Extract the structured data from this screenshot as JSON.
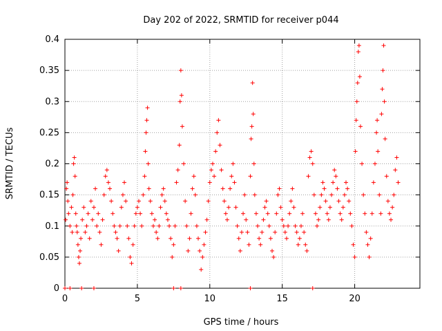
{
  "chart_data": {
    "type": "scatter",
    "title": "Day 202 of 2022, SRMTID for receiver p044",
    "xlabel": "GPS time / hours",
    "ylabel": "SRMTID / TECUs",
    "xlim": [
      0,
      24.5
    ],
    "ylim": [
      0,
      0.4
    ],
    "xticks": [
      0,
      5,
      10,
      15,
      20
    ],
    "xtick_labels": [
      "0",
      "5",
      "10",
      "15",
      "20"
    ],
    "yticks": [
      0,
      0.05,
      0.1,
      0.15,
      0.2,
      0.25,
      0.3,
      0.35,
      0.4
    ],
    "ytick_labels": [
      "0",
      "0.05",
      "0.1",
      "0.15",
      "0.2",
      "0.25",
      "0.3",
      "0.35",
      "0.4"
    ],
    "grid": true,
    "marker": "+",
    "color": "#ff0000",
    "series": [
      {
        "name": "SRMTID",
        "points": [
          [
            0.05,
            0.11
          ],
          [
            0.1,
            0.16
          ],
          [
            0.15,
            0.17
          ],
          [
            0.2,
            0.14
          ],
          [
            0.25,
            0.12
          ],
          [
            0.35,
            0.1
          ],
          [
            0.45,
            0.13
          ],
          [
            0.5,
            0.09
          ],
          [
            0.55,
            0.15
          ],
          [
            0.6,
            0.2
          ],
          [
            0.65,
            0.21
          ],
          [
            0.7,
            0.18
          ],
          [
            0.75,
            0.12
          ],
          [
            0.8,
            0.1
          ],
          [
            0.85,
            0.09
          ],
          [
            0.9,
            0.07
          ],
          [
            0.95,
            0.05
          ],
          [
            1.0,
            0.04
          ],
          [
            1.05,
            0.06
          ],
          [
            1.1,
            0.08
          ],
          [
            1.2,
            0.11
          ],
          [
            1.3,
            0.13
          ],
          [
            1.4,
            0.09
          ],
          [
            1.5,
            0.1
          ],
          [
            1.6,
            0.12
          ],
          [
            1.7,
            0.08
          ],
          [
            1.8,
            0.14
          ],
          [
            1.9,
            0.11
          ],
          [
            2.0,
            0.13
          ],
          [
            2.1,
            0.16
          ],
          [
            2.2,
            0.1
          ],
          [
            2.3,
            0.12
          ],
          [
            2.4,
            0.09
          ],
          [
            2.5,
            0.07
          ],
          [
            2.6,
            0.11
          ],
          [
            2.7,
            0.15
          ],
          [
            2.8,
            0.18
          ],
          [
            2.9,
            0.19
          ],
          [
            3.0,
            0.17
          ],
          [
            3.1,
            0.16
          ],
          [
            3.2,
            0.14
          ],
          [
            3.3,
            0.12
          ],
          [
            3.4,
            0.1
          ],
          [
            3.5,
            0.09
          ],
          [
            3.6,
            0.08
          ],
          [
            3.7,
            0.06
          ],
          [
            3.8,
            0.1
          ],
          [
            3.9,
            0.13
          ],
          [
            4.0,
            0.15
          ],
          [
            4.1,
            0.17
          ],
          [
            4.2,
            0.14
          ],
          [
            4.3,
            0.1
          ],
          [
            4.4,
            0.08
          ],
          [
            4.5,
            0.05
          ],
          [
            4.6,
            0.04
          ],
          [
            4.7,
            0.07
          ],
          [
            4.8,
            0.1
          ],
          [
            4.9,
            0.12
          ],
          [
            5.0,
            0.13
          ],
          [
            5.1,
            0.14
          ],
          [
            5.2,
            0.12
          ],
          [
            5.3,
            0.1
          ],
          [
            5.4,
            0.15
          ],
          [
            5.5,
            0.18
          ],
          [
            5.55,
            0.22
          ],
          [
            5.6,
            0.25
          ],
          [
            5.65,
            0.27
          ],
          [
            5.7,
            0.29
          ],
          [
            5.75,
            0.2
          ],
          [
            5.8,
            0.16
          ],
          [
            5.9,
            0.14
          ],
          [
            6.0,
            0.12
          ],
          [
            6.1,
            0.1
          ],
          [
            6.2,
            0.11
          ],
          [
            6.3,
            0.09
          ],
          [
            6.4,
            0.08
          ],
          [
            6.5,
            0.1
          ],
          [
            6.6,
            0.13
          ],
          [
            6.7,
            0.15
          ],
          [
            6.8,
            0.16
          ],
          [
            6.9,
            0.14
          ],
          [
            7.0,
            0.12
          ],
          [
            7.1,
            0.11
          ],
          [
            7.2,
            0.1
          ],
          [
            7.3,
            0.08
          ],
          [
            7.4,
            0.05
          ],
          [
            7.5,
            0.07
          ],
          [
            7.6,
            0.1
          ],
          [
            7.7,
            0.17
          ],
          [
            7.8,
            0.19
          ],
          [
            7.9,
            0.23
          ],
          [
            7.95,
            0.3
          ],
          [
            8.0,
            0.35
          ],
          [
            8.05,
            0.31
          ],
          [
            8.1,
            0.26
          ],
          [
            8.2,
            0.2
          ],
          [
            8.3,
            0.14
          ],
          [
            8.4,
            0.1
          ],
          [
            8.5,
            0.06
          ],
          [
            8.6,
            0.08
          ],
          [
            8.7,
            0.12
          ],
          [
            8.8,
            0.16
          ],
          [
            8.9,
            0.18
          ],
          [
            9.0,
            0.15
          ],
          [
            9.1,
            0.1
          ],
          [
            9.2,
            0.08
          ],
          [
            9.3,
            0.06
          ],
          [
            9.4,
            0.03
          ],
          [
            9.5,
            0.05
          ],
          [
            9.6,
            0.07
          ],
          [
            9.7,
            0.09
          ],
          [
            9.8,
            0.11
          ],
          [
            9.9,
            0.14
          ],
          [
            10.0,
            0.17
          ],
          [
            10.1,
            0.19
          ],
          [
            10.2,
            0.2
          ],
          [
            10.3,
            0.18
          ],
          [
            10.4,
            0.22
          ],
          [
            10.5,
            0.25
          ],
          [
            10.6,
            0.27
          ],
          [
            10.7,
            0.23
          ],
          [
            10.8,
            0.19
          ],
          [
            10.9,
            0.16
          ],
          [
            11.0,
            0.14
          ],
          [
            11.1,
            0.12
          ],
          [
            11.2,
            0.11
          ],
          [
            11.3,
            0.13
          ],
          [
            11.4,
            0.16
          ],
          [
            11.5,
            0.18
          ],
          [
            11.6,
            0.2
          ],
          [
            11.7,
            0.17
          ],
          [
            11.8,
            0.13
          ],
          [
            11.9,
            0.1
          ],
          [
            12.0,
            0.08
          ],
          [
            12.1,
            0.06
          ],
          [
            12.2,
            0.09
          ],
          [
            12.3,
            0.12
          ],
          [
            12.4,
            0.15
          ],
          [
            12.5,
            0.11
          ],
          [
            12.6,
            0.09
          ],
          [
            12.7,
            0.07
          ],
          [
            12.8,
            0.18
          ],
          [
            12.85,
            0.24
          ],
          [
            12.9,
            0.26
          ],
          [
            12.95,
            0.33
          ],
          [
            13.0,
            0.28
          ],
          [
            13.05,
            0.2
          ],
          [
            13.1,
            0.15
          ],
          [
            13.2,
            0.12
          ],
          [
            13.3,
            0.1
          ],
          [
            13.4,
            0.08
          ],
          [
            13.5,
            0.07
          ],
          [
            13.6,
            0.09
          ],
          [
            13.7,
            0.11
          ],
          [
            13.8,
            0.13
          ],
          [
            13.9,
            0.14
          ],
          [
            14.0,
            0.12
          ],
          [
            14.1,
            0.1
          ],
          [
            14.2,
            0.08
          ],
          [
            14.3,
            0.06
          ],
          [
            14.4,
            0.05
          ],
          [
            14.5,
            0.09
          ],
          [
            14.6,
            0.12
          ],
          [
            14.7,
            0.15
          ],
          [
            14.8,
            0.16
          ],
          [
            14.9,
            0.13
          ],
          [
            15.0,
            0.11
          ],
          [
            15.1,
            0.1
          ],
          [
            15.2,
            0.09
          ],
          [
            15.3,
            0.08
          ],
          [
            15.4,
            0.1
          ],
          [
            15.5,
            0.12
          ],
          [
            15.6,
            0.14
          ],
          [
            15.7,
            0.16
          ],
          [
            15.8,
            0.13
          ],
          [
            15.9,
            0.1
          ],
          [
            16.0,
            0.09
          ],
          [
            16.1,
            0.07
          ],
          [
            16.2,
            0.08
          ],
          [
            16.3,
            0.1
          ],
          [
            16.4,
            0.12
          ],
          [
            16.5,
            0.09
          ],
          [
            16.6,
            0.07
          ],
          [
            16.7,
            0.06
          ],
          [
            16.8,
            0.18
          ],
          [
            16.9,
            0.21
          ],
          [
            17.0,
            0.22
          ],
          [
            17.1,
            0.2
          ],
          [
            17.2,
            0.15
          ],
          [
            17.3,
            0.12
          ],
          [
            17.4,
            0.1
          ],
          [
            17.5,
            0.11
          ],
          [
            17.6,
            0.13
          ],
          [
            17.7,
            0.15
          ],
          [
            17.8,
            0.17
          ],
          [
            17.9,
            0.16
          ],
          [
            18.0,
            0.14
          ],
          [
            18.1,
            0.12
          ],
          [
            18.2,
            0.11
          ],
          [
            18.3,
            0.13
          ],
          [
            18.4,
            0.15
          ],
          [
            18.5,
            0.17
          ],
          [
            18.6,
            0.19
          ],
          [
            18.7,
            0.18
          ],
          [
            18.8,
            0.16
          ],
          [
            18.9,
            0.14
          ],
          [
            19.0,
            0.12
          ],
          [
            19.1,
            0.11
          ],
          [
            19.2,
            0.13
          ],
          [
            19.3,
            0.15
          ],
          [
            19.4,
            0.17
          ],
          [
            19.5,
            0.16
          ],
          [
            19.6,
            0.14
          ],
          [
            19.7,
            0.12
          ],
          [
            19.8,
            0.1
          ],
          [
            19.9,
            0.07
          ],
          [
            20.0,
            0.05
          ],
          [
            20.05,
            0.22
          ],
          [
            20.1,
            0.27
          ],
          [
            20.15,
            0.3
          ],
          [
            20.2,
            0.33
          ],
          [
            20.25,
            0.38
          ],
          [
            20.3,
            0.39
          ],
          [
            20.35,
            0.34
          ],
          [
            20.4,
            0.26
          ],
          [
            20.5,
            0.2
          ],
          [
            20.6,
            0.15
          ],
          [
            20.7,
            0.12
          ],
          [
            20.8,
            0.09
          ],
          [
            20.9,
            0.07
          ],
          [
            21.0,
            0.05
          ],
          [
            21.1,
            0.08
          ],
          [
            21.2,
            0.12
          ],
          [
            21.3,
            0.17
          ],
          [
            21.4,
            0.2
          ],
          [
            21.5,
            0.25
          ],
          [
            21.55,
            0.27
          ],
          [
            21.6,
            0.22
          ],
          [
            21.7,
            0.15
          ],
          [
            21.8,
            0.12
          ],
          [
            21.85,
            0.28
          ],
          [
            21.9,
            0.32
          ],
          [
            21.95,
            0.35
          ],
          [
            22.0,
            0.39
          ],
          [
            22.05,
            0.3
          ],
          [
            22.1,
            0.24
          ],
          [
            22.2,
            0.18
          ],
          [
            22.3,
            0.14
          ],
          [
            22.4,
            0.12
          ],
          [
            22.5,
            0.11
          ],
          [
            22.6,
            0.13
          ],
          [
            22.7,
            0.15
          ],
          [
            22.8,
            0.19
          ],
          [
            22.9,
            0.21
          ],
          [
            23.0,
            0.17
          ],
          [
            0.0,
            0.0
          ],
          [
            0.35,
            0.0
          ],
          [
            1.15,
            0.0
          ],
          [
            2.0,
            0.0
          ],
          [
            7.5,
            0.0
          ],
          [
            8.0,
            0.0
          ],
          [
            12.8,
            0.0
          ],
          [
            17.1,
            0.0
          ]
        ]
      }
    ]
  }
}
